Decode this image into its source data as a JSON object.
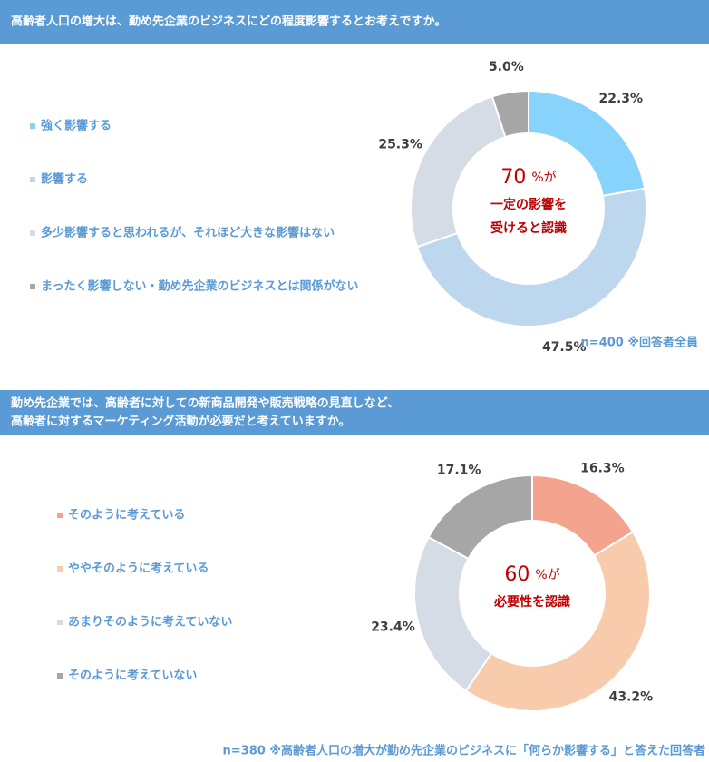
{
  "chart_data": [
    {
      "type": "donut",
      "title": [
        "高齢者人口の増大は、勤め先企業のビジネスにどの程度影響するとお考えですか。"
      ],
      "categories": [
        "強く影響する",
        "影響する",
        "多少影響すると思われるが、それほど大きな影響はない",
        "まったく影響しない・勤め先企業のビジネスとは関係がない"
      ],
      "values": [
        22.3,
        47.5,
        25.3,
        5.0
      ],
      "value_labels": [
        "22.3%",
        "47.5%",
        "25.3%",
        "5.0%"
      ],
      "colors": [
        "#87d3fb",
        "#bdd7ee",
        "#d6dce5",
        "#a6a6a6"
      ],
      "center": {
        "number": 70,
        "suffix": "%が",
        "lines": [
          "一定の影響を",
          "受けると認識"
        ]
      },
      "note": "n=400 ※回答者全員"
    },
    {
      "type": "donut",
      "title": [
        "勤め先企業では、高齢者に対しての新商品開発や販売戦略の見直しなど、",
        "高齢者に対するマーケティング活動が必要だと考えていますか。"
      ],
      "categories": [
        "そのように考えている",
        "ややそのように考えている",
        "あまりそのように考えていない",
        "そのように考えていない"
      ],
      "values": [
        16.3,
        43.2,
        23.4,
        17.1
      ],
      "value_labels": [
        "16.3%",
        "43.2%",
        "23.4%",
        "17.1%"
      ],
      "colors": [
        "#f4a38f",
        "#f8cbad",
        "#d6dce5",
        "#a6a6a6"
      ],
      "center": {
        "number": 60,
        "suffix": "%が",
        "lines": [
          "必要性を認識"
        ]
      },
      "note": "n=380 ※高齢者人口の増大が勤め先企業のビジネスに「何らか影響する」と答えた回答者"
    }
  ]
}
